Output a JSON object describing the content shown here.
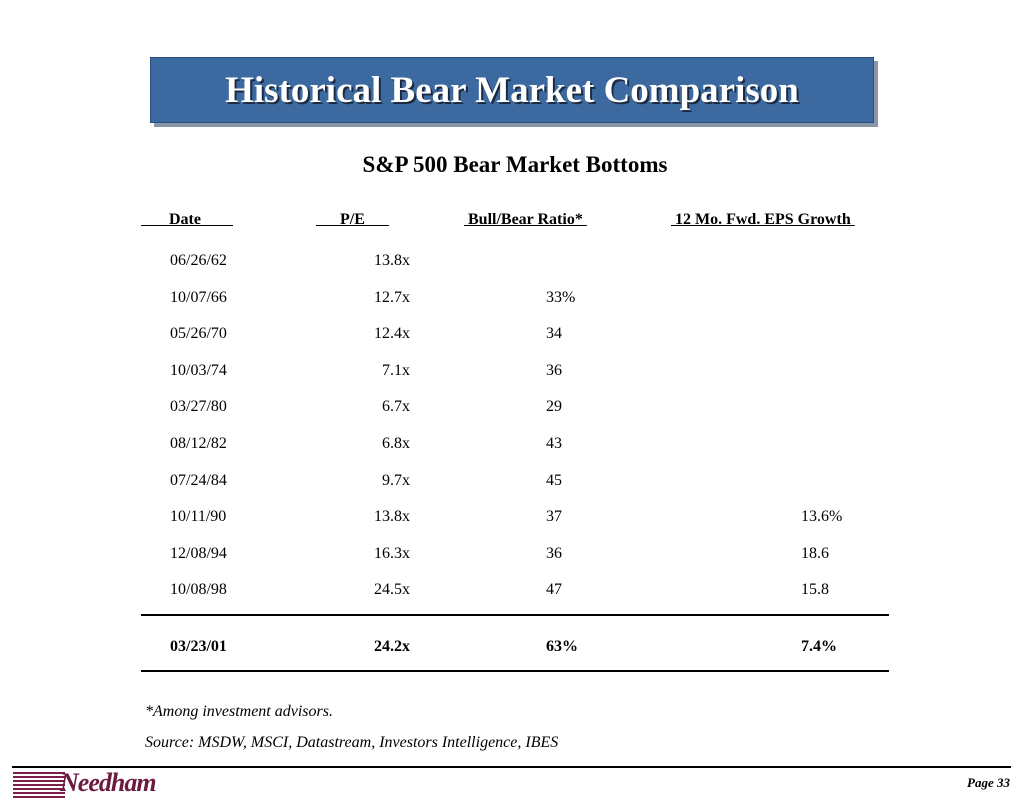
{
  "title": "Historical Bear Market Comparison",
  "subtitle": "S&P 500 Bear Market Bottoms",
  "headers": {
    "date": "       Date        ",
    "pe": "      P/E      ",
    "bull_bear": " Bull/Bear Ratio* ",
    "eps": " 12 Mo. Fwd. EPS Growth "
  },
  "rows": [
    {
      "date": "06/26/62",
      "pe": "13.8x",
      "bull_bear": "",
      "eps": ""
    },
    {
      "date": "10/07/66",
      "pe": "12.7x",
      "bull_bear": "33%",
      "eps": ""
    },
    {
      "date": "05/26/70",
      "pe": "12.4x",
      "bull_bear": "34",
      "eps": ""
    },
    {
      "date": "10/03/74",
      "pe": "7.1x",
      "bull_bear": "36",
      "eps": ""
    },
    {
      "date": "03/27/80",
      "pe": "6.7x",
      "bull_bear": "29",
      "eps": ""
    },
    {
      "date": "08/12/82",
      "pe": "6.8x",
      "bull_bear": "43",
      "eps": ""
    },
    {
      "date": "07/24/84",
      "pe": "9.7x",
      "bull_bear": "45",
      "eps": ""
    },
    {
      "date": "10/11/90",
      "pe": "13.8x",
      "bull_bear": "37",
      "eps": "13.6%"
    },
    {
      "date": "12/08/94",
      "pe": "16.3x",
      "bull_bear": "36",
      "eps": "18.6"
    },
    {
      "date": "10/08/98",
      "pe": "24.5x",
      "bull_bear": "47",
      "eps": "15.8"
    }
  ],
  "current_row": {
    "date": "03/23/01",
    "pe": "24.2x",
    "bull_bear": "63%",
    "eps": "7.4%"
  },
  "notes": {
    "footnote": "*Among investment advisors.",
    "source": "Source: MSDW, MSCI, Datastream, Investors Intelligence, IBES"
  },
  "footer": {
    "logo": "Needham",
    "page": "Page 33"
  },
  "colors": {
    "title_bg": "#3c6aa0",
    "logo": "#6b1a40"
  }
}
